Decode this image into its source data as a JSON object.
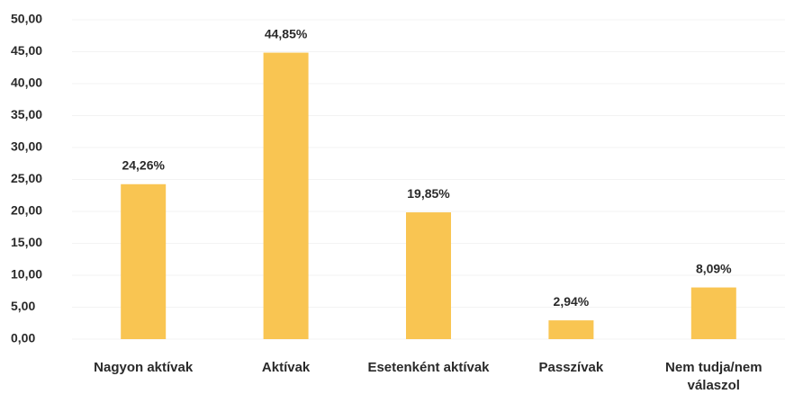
{
  "chart_data": {
    "type": "bar",
    "categories": [
      "Nagyon aktívak",
      "Aktívak",
      "Esetenként aktívak",
      "Passzívak",
      "Nem tudja/nem válaszol"
    ],
    "values": [
      24.26,
      44.85,
      19.85,
      2.94,
      8.09
    ],
    "value_labels": [
      "24,26%",
      "44,85%",
      "19,85%",
      "2,94%",
      "8,09%"
    ],
    "color": "#f9c552",
    "ylim": [
      0,
      50
    ],
    "yticks": [
      {
        "value": 0,
        "label": "0,00"
      },
      {
        "value": 5,
        "label": "5,00"
      },
      {
        "value": 10,
        "label": "10,00"
      },
      {
        "value": 15,
        "label": "15,00"
      },
      {
        "value": 20,
        "label": "20,00"
      },
      {
        "value": 25,
        "label": "25,00"
      },
      {
        "value": 30,
        "label": "30,00"
      },
      {
        "value": 35,
        "label": "35,00"
      },
      {
        "value": 40,
        "label": "40,00"
      },
      {
        "value": 45,
        "label": "45,00"
      },
      {
        "value": 50,
        "label": "50,00"
      }
    ],
    "grid": true
  }
}
